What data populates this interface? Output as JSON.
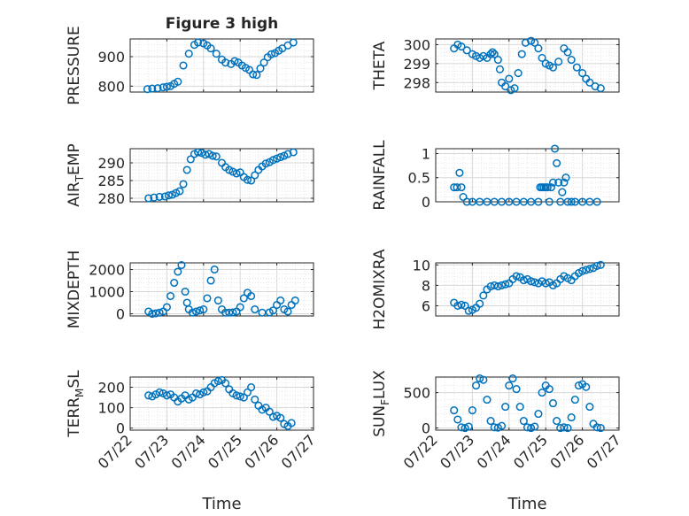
{
  "figure": {
    "title": "Figure 3 high"
  },
  "x_axis": {
    "label": "Time",
    "ticks": [
      "07/22",
      "07/23",
      "07/24",
      "07/25",
      "07/26",
      "07/27"
    ],
    "range_days": [
      0,
      5
    ]
  },
  "colors": {
    "marker": "#0072BD",
    "axis": "#262626",
    "grid": "#d7d7d7",
    "minor_grid": "#e6e6e6"
  },
  "chart_data": [
    {
      "type": "scatter",
      "ylabel": "PRESSURE",
      "ylim": [
        780,
        960
      ],
      "yticks": [
        800,
        900
      ],
      "title": "Figure 3 high",
      "x": [
        0.47,
        0.6,
        0.75,
        0.9,
        1.0,
        1.1,
        1.2,
        1.3,
        1.45,
        1.6,
        1.75,
        1.85,
        2.0,
        2.1,
        2.2,
        2.35,
        2.5,
        2.6,
        2.75,
        2.85,
        2.95,
        3.05,
        3.15,
        3.25,
        3.35,
        3.45,
        3.55,
        3.65,
        3.75,
        3.85,
        3.95,
        4.05,
        4.15,
        4.3,
        4.45
      ],
      "y": [
        790,
        792,
        793,
        796,
        798,
        800,
        808,
        815,
        870,
        910,
        940,
        948,
        945,
        938,
        928,
        910,
        890,
        880,
        875,
        885,
        880,
        870,
        862,
        855,
        840,
        838,
        860,
        880,
        898,
        908,
        912,
        920,
        928,
        938,
        948
      ]
    },
    {
      "type": "scatter",
      "ylabel": "THETA",
      "ylim": [
        297.5,
        300.3
      ],
      "yticks": [
        298,
        299,
        300
      ],
      "x": [
        0.5,
        0.6,
        0.7,
        0.85,
        1.0,
        1.1,
        1.2,
        1.3,
        1.4,
        1.5,
        1.55,
        1.6,
        1.7,
        1.75,
        1.8,
        1.9,
        2.0,
        2.05,
        2.15,
        2.25,
        2.35,
        2.45,
        2.6,
        2.7,
        2.8,
        2.9,
        3.0,
        3.1,
        3.2,
        3.35,
        3.5,
        3.6,
        3.7,
        3.85,
        4.0,
        4.1,
        4.2,
        4.35,
        4.5
      ],
      "y": [
        299.8,
        300.0,
        299.9,
        299.7,
        299.5,
        299.4,
        299.3,
        299.4,
        299.3,
        299.5,
        299.6,
        299.5,
        299.2,
        298.7,
        298.0,
        297.8,
        298.2,
        297.6,
        297.7,
        298.5,
        299.5,
        300.1,
        300.2,
        300.1,
        299.8,
        299.3,
        299.0,
        298.9,
        298.8,
        299.1,
        299.8,
        299.6,
        299.2,
        298.8,
        298.5,
        298.2,
        298.0,
        297.8,
        297.7
      ]
    },
    {
      "type": "scatter",
      "ylabel": "AIR_TEMP",
      "ylim": [
        279,
        294
      ],
      "yticks": [
        280,
        285,
        290
      ],
      "x": [
        0.5,
        0.65,
        0.8,
        0.95,
        1.05,
        1.15,
        1.25,
        1.35,
        1.45,
        1.55,
        1.65,
        1.75,
        1.85,
        1.95,
        2.05,
        2.15,
        2.25,
        2.35,
        2.5,
        2.6,
        2.7,
        2.8,
        2.9,
        3.0,
        3.1,
        3.2,
        3.3,
        3.4,
        3.5,
        3.6,
        3.7,
        3.8,
        3.9,
        4.0,
        4.1,
        4.2,
        4.3,
        4.45
      ],
      "y": [
        280,
        280.2,
        280.4,
        280.5,
        280.8,
        281.0,
        281.5,
        282,
        284,
        288,
        291,
        292.5,
        293,
        292.8,
        292.3,
        292.5,
        292,
        291.8,
        290,
        288.8,
        288,
        287.5,
        287,
        287.3,
        286,
        285.2,
        285,
        286.5,
        288,
        289,
        289.8,
        290.2,
        290.8,
        291.2,
        291.6,
        292,
        292.5,
        293
      ]
    },
    {
      "type": "scatter",
      "ylabel": "RAINFALL",
      "ylim": [
        0,
        1.1
      ],
      "yticks": [
        0,
        0.5,
        1
      ],
      "x": [
        0.5,
        0.58,
        0.65,
        0.7,
        0.75,
        0.85,
        1.0,
        1.2,
        1.4,
        1.6,
        1.8,
        2.0,
        2.2,
        2.4,
        2.6,
        2.8,
        2.85,
        2.9,
        2.95,
        3.0,
        3.05,
        3.1,
        3.15,
        3.2,
        3.25,
        3.3,
        3.35,
        3.4,
        3.45,
        3.5,
        3.55,
        3.6,
        3.7,
        3.8,
        4.0,
        4.2,
        4.4
      ],
      "y": [
        0.3,
        0.3,
        0.6,
        0.3,
        0.1,
        0,
        0,
        0,
        0,
        0,
        0,
        0,
        0,
        0,
        0,
        0,
        0.3,
        0.3,
        0.3,
        0.3,
        0.3,
        0,
        0.3,
        0.4,
        1.1,
        0.8,
        0.4,
        0,
        0.2,
        0.4,
        0.5,
        0,
        0,
        0,
        0,
        0,
        0
      ]
    },
    {
      "type": "scatter",
      "ylabel": "MIXDEPTH",
      "ylim": [
        -100,
        2300
      ],
      "yticks": [
        0,
        1000,
        2000
      ],
      "x": [
        0.5,
        0.6,
        0.7,
        0.8,
        0.9,
        1.0,
        1.1,
        1.2,
        1.3,
        1.4,
        1.5,
        1.55,
        1.6,
        1.7,
        1.8,
        1.9,
        2.0,
        2.1,
        2.2,
        2.3,
        2.4,
        2.5,
        2.6,
        2.7,
        2.8,
        2.9,
        3.0,
        3.1,
        3.2,
        3.3,
        3.4,
        3.6,
        3.8,
        3.9,
        4.0,
        4.1,
        4.2,
        4.3,
        4.4,
        4.5
      ],
      "y": [
        100,
        0,
        20,
        50,
        100,
        300,
        800,
        1400,
        1900,
        2200,
        1000,
        500,
        200,
        50,
        100,
        150,
        200,
        700,
        1500,
        2000,
        600,
        200,
        50,
        50,
        60,
        100,
        300,
        700,
        950,
        800,
        200,
        50,
        60,
        150,
        400,
        600,
        200,
        100,
        400,
        600
      ]
    },
    {
      "type": "scatter",
      "ylabel": "H2OMIXRA",
      "ylim": [
        5,
        10.2
      ],
      "yticks": [
        6,
        8,
        10
      ],
      "x": [
        0.5,
        0.6,
        0.7,
        0.8,
        0.9,
        1.0,
        1.1,
        1.2,
        1.3,
        1.4,
        1.5,
        1.6,
        1.7,
        1.8,
        1.9,
        2.0,
        2.1,
        2.2,
        2.3,
        2.4,
        2.5,
        2.6,
        2.7,
        2.8,
        2.9,
        3.0,
        3.1,
        3.2,
        3.3,
        3.4,
        3.5,
        3.6,
        3.7,
        3.8,
        3.9,
        4.0,
        4.1,
        4.2,
        4.3,
        4.4,
        4.5
      ],
      "y": [
        6.3,
        6.0,
        6.1,
        6.0,
        5.5,
        5.6,
        5.8,
        6.2,
        7.0,
        7.6,
        7.9,
        8.0,
        7.9,
        8.0,
        8.1,
        8.2,
        8.6,
        8.9,
        8.8,
        8.5,
        8.6,
        8.4,
        8.3,
        8.2,
        8.4,
        8.2,
        8.3,
        8.0,
        8.2,
        8.6,
        8.9,
        8.7,
        8.5,
        8.9,
        9.2,
        9.4,
        9.5,
        9.6,
        9.7,
        9.9,
        10.0
      ]
    },
    {
      "type": "scatter",
      "ylabel": "TERR_MSL",
      "ylim": [
        -10,
        250
      ],
      "yticks": [
        0,
        100,
        200
      ],
      "x": [
        0.5,
        0.6,
        0.7,
        0.8,
        0.9,
        1.0,
        1.1,
        1.2,
        1.3,
        1.4,
        1.5,
        1.6,
        1.7,
        1.8,
        1.9,
        2.0,
        2.1,
        2.2,
        2.3,
        2.4,
        2.5,
        2.6,
        2.7,
        2.8,
        2.9,
        3.0,
        3.1,
        3.2,
        3.3,
        3.4,
        3.5,
        3.6,
        3.7,
        3.8,
        3.9,
        4.0,
        4.1,
        4.2,
        4.3,
        4.4
      ],
      "y": [
        160,
        155,
        165,
        175,
        170,
        160,
        165,
        150,
        130,
        145,
        160,
        140,
        150,
        170,
        165,
        175,
        180,
        200,
        220,
        230,
        235,
        220,
        190,
        170,
        160,
        155,
        150,
        175,
        200,
        140,
        110,
        90,
        100,
        80,
        55,
        60,
        50,
        20,
        10,
        25
      ]
    },
    {
      "type": "scatter",
      "ylabel": "SUN_FLUX",
      "ylim": [
        -30,
        720
      ],
      "yticks": [
        0,
        500
      ],
      "x": [
        0.5,
        0.6,
        0.7,
        0.8,
        0.9,
        1.0,
        1.1,
        1.2,
        1.3,
        1.4,
        1.5,
        1.6,
        1.7,
        1.8,
        1.9,
        2.0,
        2.1,
        2.2,
        2.3,
        2.4,
        2.5,
        2.6,
        2.7,
        2.8,
        2.9,
        3.0,
        3.1,
        3.2,
        3.3,
        3.4,
        3.5,
        3.6,
        3.7,
        3.8,
        3.9,
        4.0,
        4.1,
        4.2,
        4.3,
        4.4,
        4.5
      ],
      "y": [
        250,
        120,
        10,
        0,
        20,
        250,
        600,
        700,
        680,
        400,
        100,
        10,
        5,
        30,
        300,
        600,
        700,
        550,
        300,
        100,
        10,
        0,
        20,
        200,
        500,
        600,
        550,
        350,
        100,
        0,
        10,
        0,
        150,
        400,
        600,
        620,
        580,
        300,
        60,
        10,
        0
      ]
    }
  ]
}
